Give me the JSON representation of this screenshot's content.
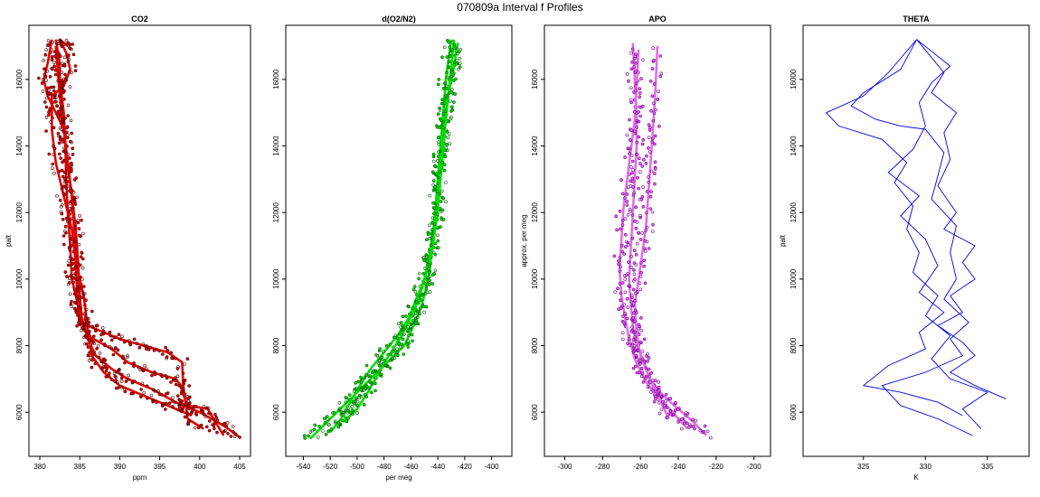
{
  "page": {
    "title": "070809a   Interval f Profiles"
  },
  "chart_data": [
    {
      "type": "scatter",
      "title": "CO2",
      "xlabel": "ppm",
      "ylabel": "palt",
      "xlim": [
        380,
        405
      ],
      "ylim": [
        5000,
        17300
      ],
      "xticks": [
        380,
        385,
        390,
        395,
        400,
        405
      ],
      "yticks": [
        6000,
        8000,
        10000,
        12000,
        14000,
        16000
      ],
      "colors": {
        "line": "#e00000",
        "points": "#e00000",
        "outline": "#5a0000"
      },
      "series": [
        {
          "name": "",
          "x": [
            405,
            403,
            400,
            397,
            394,
            391,
            389,
            387,
            386,
            385,
            384,
            383.8,
            383.5,
            383.3,
            383.2,
            383,
            382.5,
            382.5,
            382
          ],
          "y": [
            5250,
            5600,
            6000,
            6300,
            6700,
            7000,
            7300,
            7700,
            8200,
            9000,
            10000,
            11000,
            12000,
            13000,
            14000,
            15000,
            16000,
            16500,
            17200
          ]
        },
        {
          "name": "",
          "x": [
            403,
            401,
            398.5,
            398,
            397.8,
            396,
            393,
            390,
            388,
            386,
            385,
            384.7,
            384.5,
            384.3,
            384,
            383.5,
            383,
            382.5,
            382
          ],
          "y": [
            5300,
            6100,
            6200,
            6500,
            7500,
            7800,
            8000,
            8200,
            8400,
            8600,
            8800,
            9500,
            10500,
            11500,
            12500,
            13500,
            14500,
            15500,
            17000
          ]
        },
        {
          "name": "",
          "x": [
            400.5,
            398.5,
            398,
            397,
            394,
            391,
            389,
            386,
            385.3,
            385,
            384.8,
            384.5,
            384,
            383.5,
            383,
            382,
            381,
            380.5,
            381,
            381.5
          ],
          "y": [
            5500,
            5800,
            6700,
            7000,
            7200,
            7500,
            7900,
            8300,
            8700,
            9500,
            10500,
            11500,
            12500,
            13500,
            14500,
            15000,
            15500,
            16000,
            16500,
            17200
          ]
        },
        {
          "name": "",
          "x": [
            399,
            396,
            393,
            390,
            388,
            386.5,
            386,
            385.5,
            384.5,
            384,
            383,
            382,
            381.5,
            381.5,
            383,
            383.8,
            383.3,
            382.5,
            383.5
          ],
          "y": [
            5900,
            6200,
            6500,
            6800,
            7200,
            7700,
            8500,
            9500,
            10500,
            11500,
            12500,
            13500,
            14500,
            15500,
            15800,
            16300,
            16800,
            17200,
            17000
          ]
        }
      ]
    },
    {
      "type": "scatter",
      "title": "d(O2/N2)",
      "xlabel": "per meg",
      "ylabel": "",
      "xlim": [
        -545,
        -393
      ],
      "ylim": [
        5000,
        17300
      ],
      "xticks": [
        -540,
        -520,
        -500,
        -480,
        -460,
        -440,
        -420,
        -400
      ],
      "yticks": [
        6000,
        8000,
        10000,
        12000,
        14000,
        16000
      ],
      "colors": {
        "line": "#00e000",
        "points": "#00e000",
        "outline": "#006000"
      },
      "series": [
        {
          "name": "",
          "x": [
            -535,
            -525,
            -515,
            -505,
            -495,
            -485,
            -475,
            -465,
            -458,
            -452,
            -447,
            -444,
            -442,
            -440,
            -438,
            -436,
            -434,
            -432,
            -430
          ],
          "y": [
            5200,
            5600,
            6000,
            6400,
            6800,
            7200,
            7600,
            8000,
            8600,
            9200,
            10000,
            11000,
            12000,
            13000,
            14000,
            15000,
            16000,
            16600,
            17200
          ]
        },
        {
          "name": "",
          "x": [
            -520,
            -512,
            -505,
            -498,
            -490,
            -480,
            -470,
            -462,
            -456,
            -450,
            -446,
            -443,
            -441,
            -439,
            -437,
            -435,
            -432,
            -428,
            -425
          ],
          "y": [
            5400,
            5800,
            6300,
            6800,
            7300,
            7800,
            8300,
            8800,
            9400,
            10000,
            10800,
            11600,
            12400,
            13200,
            14000,
            14800,
            15600,
            16400,
            17100
          ]
        },
        {
          "name": "",
          "x": [
            -510,
            -500,
            -492,
            -485,
            -478,
            -470,
            -463,
            -457,
            -452,
            -447,
            -443,
            -440,
            -438,
            -436,
            -434,
            -432,
            -430,
            -428
          ],
          "y": [
            5700,
            6100,
            6600,
            7100,
            7600,
            8100,
            8600,
            9100,
            9700,
            10400,
            11200,
            12100,
            13000,
            13900,
            14800,
            15600,
            16400,
            17200
          ]
        }
      ]
    },
    {
      "type": "scatter",
      "title": "APO",
      "xlabel": "",
      "ylabel": "approx. per meg",
      "xlim": [
        -305,
        -197
      ],
      "ylim": [
        5000,
        17300
      ],
      "xticks": [
        -300,
        -280,
        -260,
        -240,
        -220,
        -200
      ],
      "yticks": [
        6000,
        8000,
        10000,
        12000,
        14000,
        16000
      ],
      "colors": {
        "line": "#e070e0",
        "points": "#e070e0",
        "outline": "#7a00a0"
      },
      "series": [
        {
          "name": "",
          "x": [
            -225,
            -232,
            -240,
            -248,
            -255,
            -258,
            -262,
            -264,
            -265,
            -266,
            -265,
            -264,
            -263,
            -262,
            -262,
            -263,
            -264
          ],
          "y": [
            5300,
            5700,
            6100,
            6500,
            7000,
            7500,
            8000,
            8600,
            9200,
            10000,
            11000,
            12000,
            13000,
            14000,
            15000,
            16000,
            17100
          ]
        },
        {
          "name": "",
          "x": [
            -235,
            -243,
            -252,
            -258,
            -263,
            -266,
            -268,
            -270,
            -271,
            -270,
            -269,
            -267,
            -265,
            -263,
            -262,
            -261
          ],
          "y": [
            5500,
            6000,
            6500,
            7000,
            7600,
            8200,
            8800,
            9500,
            10300,
            11200,
            12100,
            13000,
            13900,
            14800,
            15800,
            16900
          ]
        },
        {
          "name": "",
          "x": [
            -245,
            -250,
            -255,
            -260,
            -262,
            -263,
            -261,
            -259,
            -257,
            -256,
            -255,
            -254,
            -253,
            -252,
            -251
          ],
          "y": [
            5800,
            6400,
            7000,
            7700,
            8400,
            9200,
            10000,
            10800,
            11600,
            12400,
            13200,
            14000,
            14800,
            15800,
            17000
          ]
        }
      ]
    },
    {
      "type": "line",
      "title": "THETA",
      "xlabel": "K",
      "ylabel": "palt",
      "xlim": [
        321,
        337.5
      ],
      "ylim": [
        5000,
        17300
      ],
      "xticks": [
        325,
        330,
        335
      ],
      "yticks": [
        6000,
        8000,
        10000,
        12000,
        14000,
        16000
      ],
      "colors": {
        "line": "#0000e0"
      },
      "series": [
        {
          "name": "",
          "x": [
            333.8,
            331,
            328,
            326.5,
            330,
            333,
            332,
            333.5,
            331.5,
            332.5,
            332,
            332.5,
            330.5,
            331,
            331.5,
            330,
            328,
            326,
            324,
            325,
            328,
            329.3
          ],
          "y": [
            5300,
            5800,
            6200,
            6800,
            7200,
            7700,
            8200,
            8700,
            9400,
            10000,
            10800,
            11600,
            12400,
            13100,
            13800,
            14500,
            14600,
            14800,
            15200,
            15600,
            16300,
            17200
          ]
        },
        {
          "name": "",
          "x": [
            334.5,
            333,
            335,
            332,
            330.5,
            332,
            330,
            331,
            329,
            329.5,
            328.5,
            329,
            327.5,
            328.5,
            326.5,
            323,
            322,
            325,
            327,
            329.3
          ],
          "y": [
            5500,
            6100,
            6600,
            7000,
            7600,
            8300,
            8900,
            9500,
            10200,
            10800,
            11500,
            12200,
            12900,
            13500,
            14200,
            14600,
            15000,
            15500,
            16200,
            17200
          ]
        },
        {
          "name": "",
          "x": [
            333,
            331,
            328,
            325,
            327,
            330,
            329.5,
            331.5,
            329.5,
            331,
            330,
            328,
            329.5,
            327,
            329,
            330,
            329.5,
            330.5,
            332,
            329.3
          ],
          "y": [
            5900,
            6300,
            6600,
            6800,
            7400,
            7900,
            8400,
            9000,
            9600,
            10400,
            11200,
            11900,
            12500,
            13200,
            13900,
            14600,
            15300,
            15900,
            16400,
            17200
          ]
        },
        {
          "name": "",
          "x": [
            336.5,
            334,
            332,
            334,
            333,
            331,
            333,
            332,
            334,
            333,
            334,
            331.5,
            332.5,
            331,
            332,
            331.5,
            332.5,
            330.5,
            331.5,
            329.3
          ],
          "y": [
            6400,
            6800,
            7200,
            7700,
            8100,
            8600,
            9000,
            9500,
            10000,
            10500,
            11000,
            11500,
            12000,
            12800,
            13600,
            14400,
            15000,
            15600,
            16200,
            17200
          ]
        }
      ]
    }
  ]
}
